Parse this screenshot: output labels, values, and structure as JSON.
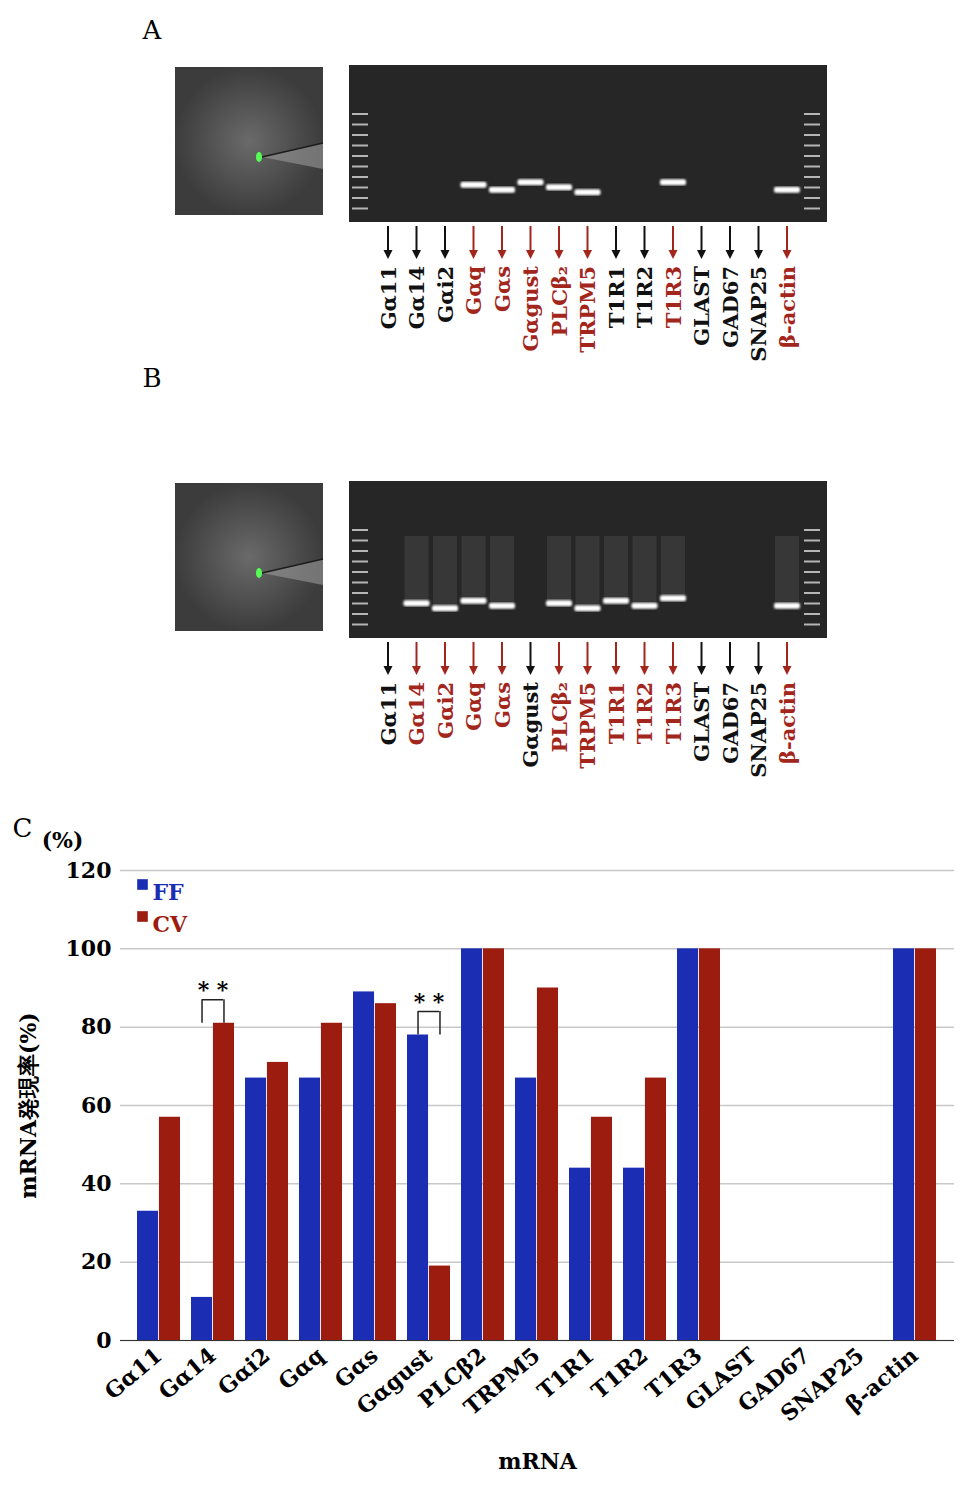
{
  "panels": [
    {
      "letter": "A",
      "lanes": [
        {
          "label": "Gα11",
          "detected": false
        },
        {
          "label": "Gα14",
          "detected": false
        },
        {
          "label": "Gαi2",
          "detected": false
        },
        {
          "label": "Gαq",
          "detected": true
        },
        {
          "label": "Gαs",
          "detected": true
        },
        {
          "label": "Gαgust",
          "detected": true
        },
        {
          "label": "PLCβ₂",
          "detected": true
        },
        {
          "label": "TRPM5",
          "detected": true
        },
        {
          "label": "T1R1",
          "detected": false
        },
        {
          "label": "T1R2",
          "detected": false
        },
        {
          "label": "T1R3",
          "detected": true
        },
        {
          "label": "GLAST",
          "detected": false
        },
        {
          "label": "GAD67",
          "detected": false
        },
        {
          "label": "SNAP25",
          "detected": false
        },
        {
          "label": "β-actin",
          "detected": true
        }
      ]
    },
    {
      "letter": "B",
      "lanes": [
        {
          "label": "Gα11",
          "detected": false
        },
        {
          "label": "Gα14",
          "detected": true
        },
        {
          "label": "Gαi2",
          "detected": true
        },
        {
          "label": "Gαq",
          "detected": true
        },
        {
          "label": "Gαs",
          "detected": true
        },
        {
          "label": "Gαgust",
          "detected": false
        },
        {
          "label": "PLCβ₂",
          "detected": true
        },
        {
          "label": "TRPM5",
          "detected": true
        },
        {
          "label": "T1R1",
          "detected": true
        },
        {
          "label": "T1R2",
          "detected": true
        },
        {
          "label": "T1R3",
          "detected": true
        },
        {
          "label": "GLAST",
          "detected": false
        },
        {
          "label": "GAD67",
          "detected": false
        },
        {
          "label": "SNAP25",
          "detected": false
        },
        {
          "label": "β-actin",
          "detected": true
        }
      ]
    }
  ],
  "chart_data": {
    "type": "bar",
    "letter": "C",
    "categories": [
      "Gα11",
      "Gα14",
      "Gαi2",
      "Gαq",
      "Gαs",
      "Gαgust",
      "PLCβ2",
      "TRPM5",
      "T1R1",
      "T1R2",
      "T1R3",
      "GLAST",
      "GAD67",
      "SNAP25",
      "β-actin"
    ],
    "series": [
      {
        "name": "FF",
        "color": "#1a2db3",
        "values": [
          33,
          11,
          67,
          67,
          89,
          78,
          100,
          67,
          44,
          44,
          100,
          0,
          0,
          0,
          100
        ]
      },
      {
        "name": "CV",
        "color": "#9c1c10",
        "values": [
          57,
          81,
          71,
          81,
          86,
          19,
          100,
          90,
          57,
          67,
          100,
          0,
          0,
          0,
          100
        ]
      }
    ],
    "xlabel": "mRNA",
    "ylabel": "mRNA発現率(%)",
    "y_unit_label": "(%)",
    "ylim": [
      0,
      120
    ],
    "yticks": [
      0,
      20,
      40,
      60,
      80,
      100,
      120
    ],
    "grid": true,
    "legend": "top-left",
    "annotations": [
      {
        "category": "Gα14",
        "text": "* *"
      },
      {
        "category": "Gαgust",
        "text": "* *"
      }
    ]
  }
}
